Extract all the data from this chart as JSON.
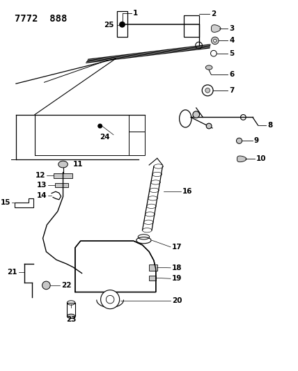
{
  "title": "7772  888",
  "bg_color": "#ffffff",
  "line_color": "#000000",
  "title_fontsize": 10,
  "label_fontsize": 7.5
}
